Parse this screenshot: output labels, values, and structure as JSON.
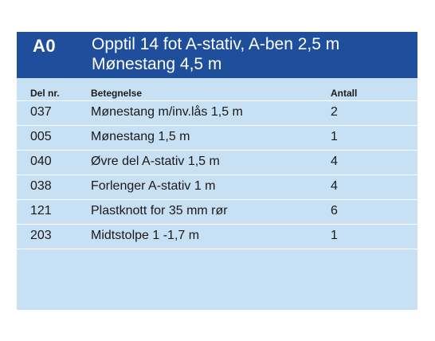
{
  "header": {
    "code": "A0",
    "title": "Opptil 14 fot A-stativ, A-ben 2,5 m Mønestang 4,5 m"
  },
  "columns": {
    "del_nr": "Del nr.",
    "betegnelse": "Betegnelse",
    "antall": "Antall"
  },
  "rows": [
    {
      "del_nr": "037",
      "betegnelse": "Mønestang m/inv.lås 1,5 m",
      "antall": "2"
    },
    {
      "del_nr": "005",
      "betegnelse": "Mønestang 1,5 m",
      "antall": "1"
    },
    {
      "del_nr": "040",
      "betegnelse": "Øvre del A-stativ 1,5 m",
      "antall": "4"
    },
    {
      "del_nr": "038",
      "betegnelse": "Forlenger A-stativ 1 m",
      "antall": "4"
    },
    {
      "del_nr": "121",
      "betegnelse": "Plastknott for 35 mm rør",
      "antall": "6"
    },
    {
      "del_nr": "203",
      "betegnelse": "Midtstolpe 1 -1,7 m",
      "antall": "1"
    }
  ],
  "colors": {
    "header_bg": "#1f4f9c",
    "table_bg": "#c8e0f4",
    "row_divider": "#ffffff"
  }
}
